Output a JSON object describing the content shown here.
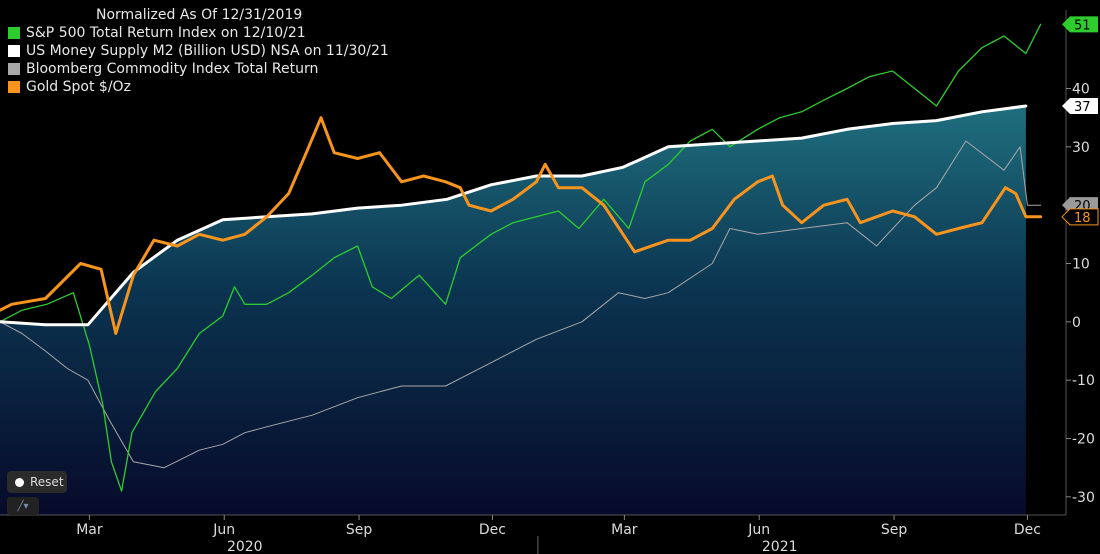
{
  "legend": {
    "title": "Normalized As Of 12/31/2019",
    "items": [
      {
        "label": "S&P 500 Total Return Index on 12/10/21",
        "color": "#2ecc2e"
      },
      {
        "label": "US Money Supply M2 (Billion USD) NSA on 11/30/21",
        "color": "#ffffff"
      },
      {
        "label": "Bloomberg Commodity Index Total Return",
        "color": "#a8a8a8"
      },
      {
        "label": "Gold Spot $/Oz",
        "color": "#f7941d"
      }
    ]
  },
  "controls": {
    "reset_label": "Reset"
  },
  "chart_data": {
    "type": "line",
    "title": "Normalized As Of 12/31/2019",
    "x_domain": [
      "2019-12-31",
      "2021-12-13"
    ],
    "ylim": [
      -35,
      55
    ],
    "y_ticks": [
      -30,
      -20,
      -10,
      0,
      10,
      20,
      30,
      40
    ],
    "x_tick_labels": [
      {
        "label": "Mar",
        "date": "2020-03-01"
      },
      {
        "label": "Jun",
        "date": "2020-06-01"
      },
      {
        "label": "Sep",
        "date": "2020-09-01"
      },
      {
        "label": "Dec",
        "date": "2020-12-01"
      },
      {
        "label": "Mar",
        "date": "2021-03-01"
      },
      {
        "label": "Jun",
        "date": "2021-06-01"
      },
      {
        "label": "Sep",
        "date": "2021-09-01"
      },
      {
        "label": "Dec",
        "date": "2021-12-01"
      }
    ],
    "year_labels": [
      {
        "label": "2020",
        "date": "2020-06-15"
      },
      {
        "label": "2021",
        "date": "2021-06-15"
      }
    ],
    "last_value_tags": [
      {
        "series": "S&P 500 Total Return Index on 12/10/21",
        "value": 51,
        "label": "51"
      },
      {
        "series": "US Money Supply M2 (Billion USD) NSA on 11/30/21",
        "value": 37,
        "label": "37"
      },
      {
        "series": "Bloomberg Commodity Index Total Return",
        "value": 20,
        "label": "20"
      },
      {
        "series": "Gold Spot $/Oz",
        "value": 18,
        "label": "18"
      }
    ],
    "series": [
      {
        "name": "US Money Supply M2 (Billion USD) NSA on 11/30/21",
        "color": "#ffffff",
        "width": 3,
        "fill": true,
        "x": [
          "2019-12-31",
          "2020-01-31",
          "2020-02-29",
          "2020-03-31",
          "2020-04-30",
          "2020-05-31",
          "2020-06-30",
          "2020-07-31",
          "2020-08-31",
          "2020-09-30",
          "2020-10-31",
          "2020-11-30",
          "2020-12-31",
          "2021-01-31",
          "2021-02-28",
          "2021-03-31",
          "2021-04-30",
          "2021-05-31",
          "2021-06-30",
          "2021-07-31",
          "2021-08-31",
          "2021-09-30",
          "2021-10-31",
          "2021-11-30"
        ],
        "y": [
          0,
          -0.5,
          -0.5,
          8.5,
          14,
          17.5,
          18,
          18.5,
          19.5,
          20,
          21,
          23.5,
          25,
          25,
          26.5,
          30,
          30.5,
          31,
          31.5,
          33,
          34,
          34.5,
          36,
          37
        ]
      },
      {
        "name": "S&P 500 Total Return Index on 12/10/21",
        "color": "#2ecc2e",
        "width": 1.3,
        "x": [
          "2019-12-31",
          "2020-01-15",
          "2020-02-01",
          "2020-02-19",
          "2020-03-01",
          "2020-03-10",
          "2020-03-16",
          "2020-03-23",
          "2020-03-30",
          "2020-04-15",
          "2020-04-30",
          "2020-05-15",
          "2020-05-31",
          "2020-06-08",
          "2020-06-15",
          "2020-06-30",
          "2020-07-15",
          "2020-07-31",
          "2020-08-15",
          "2020-08-31",
          "2020-09-10",
          "2020-09-23",
          "2020-10-12",
          "2020-10-30",
          "2020-11-09",
          "2020-11-30",
          "2020-12-15",
          "2020-12-31",
          "2021-01-15",
          "2021-01-29",
          "2021-02-15",
          "2021-03-04",
          "2021-03-15",
          "2021-03-31",
          "2021-04-15",
          "2021-04-30",
          "2021-05-12",
          "2021-05-31",
          "2021-06-15",
          "2021-06-30",
          "2021-07-15",
          "2021-07-31",
          "2021-08-15",
          "2021-08-31",
          "2021-09-15",
          "2021-09-30",
          "2021-10-15",
          "2021-10-31",
          "2021-11-15",
          "2021-11-30",
          "2021-12-10"
        ],
        "y": [
          0,
          2,
          3,
          5,
          -4,
          -14,
          -24,
          -29,
          -19,
          -12,
          -8,
          -2,
          1,
          6,
          3,
          3,
          5,
          8,
          11,
          13,
          6,
          4,
          8,
          3,
          11,
          15,
          17,
          18,
          19,
          16,
          21,
          16,
          24,
          27,
          31,
          33,
          30,
          33,
          35,
          36,
          38,
          40,
          42,
          43,
          40,
          37,
          43,
          47,
          49,
          46,
          51
        ]
      },
      {
        "name": "Bloomberg Commodity Index Total Return",
        "color": "#a8a8a8",
        "width": 1,
        "x": [
          "2019-12-31",
          "2020-01-15",
          "2020-01-31",
          "2020-02-15",
          "2020-02-29",
          "2020-03-15",
          "2020-03-31",
          "2020-04-21",
          "2020-05-15",
          "2020-05-31",
          "2020-06-15",
          "2020-06-30",
          "2020-07-31",
          "2020-08-31",
          "2020-09-15",
          "2020-09-30",
          "2020-10-30",
          "2020-11-30",
          "2020-12-31",
          "2021-01-31",
          "2021-02-25",
          "2021-03-15",
          "2021-03-31",
          "2021-04-30",
          "2021-05-12",
          "2021-05-31",
          "2021-06-30",
          "2021-07-31",
          "2021-08-20",
          "2021-09-15",
          "2021-09-30",
          "2021-10-20",
          "2021-11-15",
          "2021-11-26",
          "2021-12-01",
          "2021-12-10"
        ],
        "y": [
          0,
          -2,
          -5,
          -8,
          -10,
          -17,
          -24,
          -25,
          -22,
          -21,
          -19,
          -18,
          -16,
          -13,
          -12,
          -11,
          -11,
          -7,
          -3,
          0,
          5,
          4,
          5,
          10,
          16,
          15,
          16,
          17,
          13,
          20,
          23,
          31,
          26,
          30,
          20,
          20
        ]
      },
      {
        "name": "Gold Spot $/Oz",
        "color": "#f7941d",
        "width": 3,
        "x": [
          "2019-12-31",
          "2020-01-08",
          "2020-01-31",
          "2020-02-24",
          "2020-03-09",
          "2020-03-19",
          "2020-03-31",
          "2020-04-14",
          "2020-04-30",
          "2020-05-15",
          "2020-05-31",
          "2020-06-15",
          "2020-06-30",
          "2020-07-15",
          "2020-07-27",
          "2020-08-06",
          "2020-08-15",
          "2020-08-31",
          "2020-09-15",
          "2020-09-30",
          "2020-10-15",
          "2020-10-30",
          "2020-11-09",
          "2020-11-15",
          "2020-11-30",
          "2020-12-15",
          "2020-12-31",
          "2021-01-06",
          "2021-01-15",
          "2021-01-31",
          "2021-02-15",
          "2021-03-08",
          "2021-03-31",
          "2021-04-15",
          "2021-04-30",
          "2021-05-15",
          "2021-05-31",
          "2021-06-10",
          "2021-06-17",
          "2021-06-30",
          "2021-07-15",
          "2021-07-31",
          "2021-08-09",
          "2021-08-31",
          "2021-09-15",
          "2021-09-30",
          "2021-10-15",
          "2021-10-31",
          "2021-11-16",
          "2021-11-23",
          "2021-11-30",
          "2021-12-10"
        ],
        "y": [
          2,
          3,
          4,
          10,
          9,
          -2,
          8,
          14,
          13,
          15,
          14,
          15,
          18,
          22,
          29,
          35,
          29,
          28,
          29,
          24,
          25,
          24,
          23,
          20,
          19,
          21,
          24,
          27,
          23,
          23,
          20,
          12,
          14,
          14,
          16,
          21,
          24,
          25,
          20,
          17,
          20,
          21,
          17,
          19,
          18,
          15,
          16,
          17,
          23,
          22,
          18,
          18
        ]
      }
    ]
  }
}
